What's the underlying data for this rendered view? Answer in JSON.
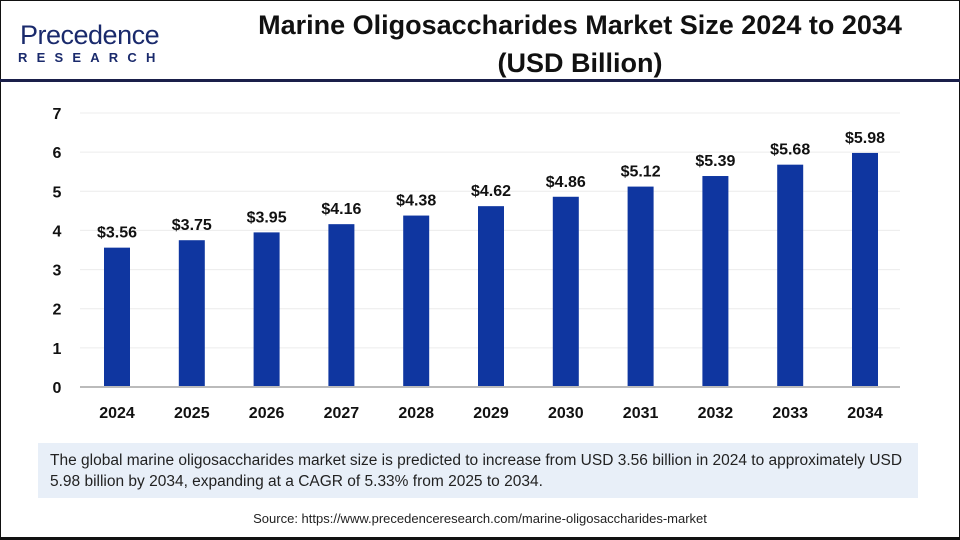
{
  "brand": {
    "line1": "Precedence",
    "line2": "RESEARCH"
  },
  "title_line1": "Marine Oligosaccharides Market Size 2024 to 2034",
  "title_line2": "(USD Billion)",
  "chart_data": {
    "type": "bar",
    "title": "Marine Oligosaccharides Market Size 2024 to 2034 (USD Billion)",
    "categories": [
      "2024",
      "2025",
      "2026",
      "2027",
      "2028",
      "2029",
      "2030",
      "2031",
      "2032",
      "2033",
      "2034"
    ],
    "values": [
      3.56,
      3.75,
      3.95,
      4.16,
      4.38,
      4.62,
      4.86,
      5.12,
      5.39,
      5.68,
      5.98
    ],
    "data_labels": [
      "$3.56",
      "$3.75",
      "$3.95",
      "$4.16",
      "$4.38",
      "$4.62",
      "$4.86",
      "$5.12",
      "$5.39",
      "$5.68",
      "$5.98"
    ],
    "yticks": [
      0,
      1,
      2,
      3,
      4,
      5,
      6,
      7
    ],
    "ylim": [
      0,
      7
    ],
    "grid": true,
    "bar_color": "#0f36a0",
    "xlabel": "",
    "ylabel": ""
  },
  "note": "The global marine oligosaccharides market size is predicted to increase from USD 3.56 billion in 2024 to approximately USD 5.98 billion by 2034, expanding at a CAGR of 5.33% from 2025 to 2034.",
  "source": "Source: https://www.precedenceresearch.com/marine-oligosaccharides-market"
}
